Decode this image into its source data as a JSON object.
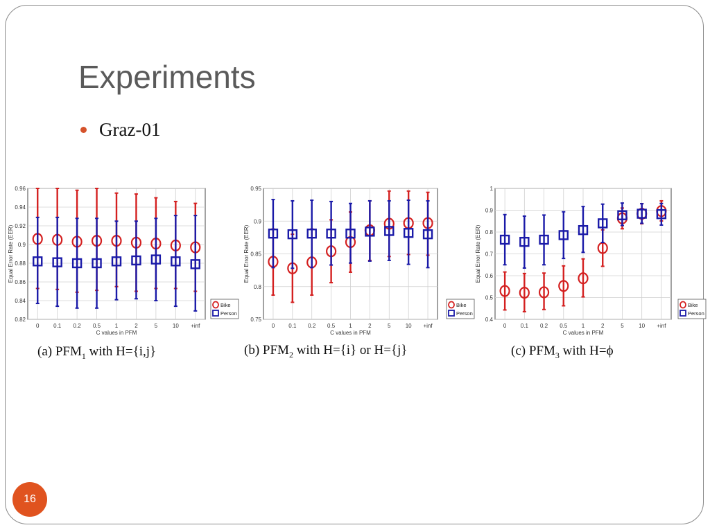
{
  "slide": {
    "title": "Experiments",
    "bullet": "Graz-01",
    "page_number": "16",
    "captions": [
      {
        "pre": "(a) PFM",
        "sub": "1",
        "post": " with H={i,j}"
      },
      {
        "pre": "(b) PFM",
        "sub": "2",
        "post": " with H={i}  or H={j}"
      },
      {
        "pre": "(c) PFM",
        "sub": "3",
        "post": " with H=ϕ"
      }
    ]
  },
  "colors": {
    "bike": "#d42020",
    "person": "#1a1aa8",
    "accent": "#e0531f"
  },
  "chart_data": [
    {
      "type": "scatter",
      "title": "",
      "xlabel": "C values in PFM",
      "ylabel": "Equal Error Rate (EER)",
      "categories": [
        "0",
        "0.1",
        "0.2",
        "0.5",
        "1",
        "2",
        "5",
        "10",
        "+inf"
      ],
      "ylim": [
        0.82,
        0.96
      ],
      "yticks": [
        "0.82",
        "0.84",
        "0.86",
        "0.88",
        "0.9",
        "0.92",
        "0.94",
        "0.96"
      ],
      "grid": true,
      "legend": "right",
      "series": [
        {
          "name": "Bike",
          "marker": "circle",
          "values": [
            0.906,
            0.905,
            0.903,
            0.904,
            0.904,
            0.902,
            0.901,
            0.899,
            0.897
          ],
          "lower": [
            0.853,
            0.852,
            0.849,
            0.851,
            0.855,
            0.85,
            0.853,
            0.853,
            0.85
          ],
          "upper": [
            0.96,
            0.96,
            0.958,
            0.96,
            0.955,
            0.954,
            0.95,
            0.946,
            0.944
          ]
        },
        {
          "name": "Person",
          "marker": "square",
          "values": [
            0.882,
            0.881,
            0.88,
            0.88,
            0.882,
            0.883,
            0.884,
            0.882,
            0.879
          ],
          "lower": [
            0.837,
            0.834,
            0.832,
            0.832,
            0.841,
            0.842,
            0.84,
            0.834,
            0.829
          ],
          "upper": [
            0.929,
            0.929,
            0.928,
            0.928,
            0.925,
            0.925,
            0.928,
            0.931,
            0.931
          ]
        }
      ]
    },
    {
      "type": "scatter",
      "title": "",
      "xlabel": "C values in PFM",
      "ylabel": "Equal Error Rate (EER)",
      "categories": [
        "0",
        "0.1",
        "0.2",
        "0.5",
        "1",
        "2",
        "5",
        "10",
        "+inf"
      ],
      "ylim": [
        0.75,
        0.95
      ],
      "yticks": [
        "0.75",
        "0.8",
        "0.85",
        "0.9",
        "0.95"
      ],
      "grid": true,
      "legend": "right",
      "series": [
        {
          "name": "Bike",
          "marker": "circle",
          "values": [
            0.838,
            0.828,
            0.837,
            0.854,
            0.868,
            0.886,
            0.896,
            0.897,
            0.897
          ],
          "lower": [
            0.787,
            0.776,
            0.787,
            0.806,
            0.822,
            0.84,
            0.846,
            0.849,
            0.848
          ],
          "upper": [
            0.888,
            0.88,
            0.888,
            0.902,
            0.914,
            0.931,
            0.946,
            0.946,
            0.944
          ]
        },
        {
          "name": "Person",
          "marker": "square",
          "values": [
            0.881,
            0.88,
            0.881,
            0.881,
            0.881,
            0.884,
            0.885,
            0.882,
            0.88
          ],
          "lower": [
            0.829,
            0.828,
            0.829,
            0.833,
            0.836,
            0.839,
            0.84,
            0.834,
            0.829
          ],
          "upper": [
            0.933,
            0.931,
            0.932,
            0.93,
            0.927,
            0.931,
            0.931,
            0.932,
            0.931
          ]
        }
      ]
    },
    {
      "type": "scatter",
      "title": "",
      "xlabel": "C values in PFM",
      "ylabel": "Equal Error Rate (EER)",
      "categories": [
        "0",
        "0.1",
        "0.2",
        "0.5",
        "1",
        "2",
        "5",
        "10",
        "+inf"
      ],
      "ylim": [
        0.4,
        1.0
      ],
      "yticks": [
        "0.4",
        "0.5",
        "0.6",
        "0.7",
        "0.8",
        "0.9",
        "1"
      ],
      "grid": true,
      "legend": "right",
      "series": [
        {
          "name": "Bike",
          "marker": "circle",
          "values": [
            0.53,
            0.522,
            0.524,
            0.553,
            0.588,
            0.727,
            0.863,
            0.884,
            0.896
          ],
          "lower": [
            0.443,
            0.435,
            0.445,
            0.462,
            0.503,
            0.643,
            0.815,
            0.838,
            0.851
          ],
          "upper": [
            0.617,
            0.61,
            0.612,
            0.645,
            0.677,
            0.81,
            0.91,
            0.93,
            0.943
          ]
        },
        {
          "name": "Person",
          "marker": "square",
          "values": [
            0.765,
            0.755,
            0.765,
            0.786,
            0.809,
            0.84,
            0.877,
            0.884,
            0.882
          ],
          "lower": [
            0.65,
            0.635,
            0.65,
            0.679,
            0.707,
            0.752,
            0.83,
            0.84,
            0.832
          ],
          "upper": [
            0.88,
            0.873,
            0.878,
            0.893,
            0.917,
            0.928,
            0.933,
            0.93,
            0.931
          ]
        }
      ]
    }
  ]
}
